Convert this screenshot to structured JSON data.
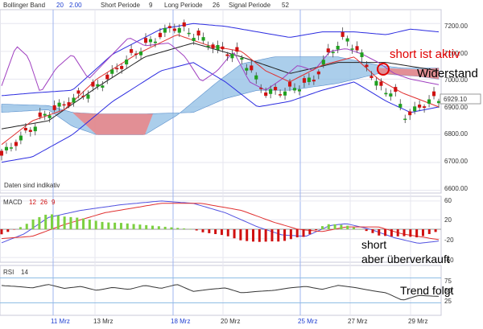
{
  "colors": {
    "price_bg": "#ffffff",
    "grid": "#e6e6ef",
    "cloud": "#8fbde4",
    "cloud_red": "#f08080",
    "bollinger": "#2b2be0",
    "signal": "#a040c0",
    "short_ma": "#e03030",
    "long_ma": "#303030",
    "candle_up": "#1fa01f",
    "candle_down": "#d01010",
    "macd_line": "#5050e0",
    "macd_signal": "#e03030",
    "hist_pos": "#7cd040",
    "hist_neg": "#d01010",
    "rsi_line": "#333333",
    "rsi_band": "#8fbde4",
    "price_box": "#ffffff",
    "annot_red": "#e00000"
  },
  "header": {
    "bb_label": "Bollinger Band",
    "bb_p1": "20",
    "bb_p2": "2.00",
    "short_label": "Short Periode",
    "short_val": "9",
    "long_label": "Long Periode",
    "long_val": "26",
    "signal_label": "Signal Periode",
    "signal_val": "52"
  },
  "notes": {
    "daten": "Daten sind indikativ"
  },
  "annotations": {
    "short_ist_aktiv": "short ist aktiv",
    "widerstand": "Widerstand",
    "short": "short",
    "aber_ueberverkauft": "aber überverkauft",
    "trend_folgt": "Trend folgt"
  },
  "price_panel": {
    "yticks": [
      "7200.00",
      "7100.00",
      "7000.00",
      "6900.00",
      "6800.00",
      "6700.00",
      "6600.00"
    ],
    "last_price": "6929.10"
  },
  "macd_panel": {
    "label": "MACD",
    "p1": "12",
    "p2": "26",
    "p3": "9",
    "yticks": [
      "60",
      "20",
      "-20",
      "-60"
    ]
  },
  "rsi_panel": {
    "label": "RSI",
    "p": "14",
    "yticks": [
      "75",
      "50",
      "25"
    ]
  },
  "x_axis": {
    "labels": [
      "11 Mrz",
      "13 Mrz",
      "18 Mrz",
      "20 Mrz",
      "25 Mrz",
      "27 Mrz",
      "29 Mrz"
    ],
    "highlight": [
      "11 Mrz",
      "18 Mrz",
      "25 Mrz"
    ]
  },
  "chart_data": [
    {
      "type": "line",
      "title": "",
      "x": [
        "11 Mrz",
        "13 Mrz",
        "18 Mrz",
        "20 Mrz",
        "25 Mrz",
        "27 Mrz",
        "29 Mrz"
      ],
      "ylim": [
        6600,
        7250
      ],
      "series": [
        {
          "name": "Bollinger Band",
          "values": [
            6770,
            6950,
            7150,
            7130,
            7050,
            7040,
            6900
          ]
        },
        {
          "values": [
            6700,
            6890,
            7170,
            7080,
            6960,
            7000,
            6920
          ]
        }
      ],
      "last_price": 6929.1
    },
    {
      "type": "bar",
      "title": "",
      "ylim": [
        -60,
        60
      ],
      "series": [
        {
          "name": "MACD",
          "values": [
            12,
            45,
            58,
            30,
            -5,
            8,
            -25
          ]
        },
        {
          "values": [
            20,
            50,
            55,
            35,
            0,
            10,
            -15
          ]
        }
      ]
    },
    {
      "type": "line",
      "title": "",
      "ylim": [
        0,
        100
      ],
      "series": [
        {
          "name": "RSI",
          "values": [
            55,
            58,
            62,
            50,
            45,
            60,
            35
          ]
        }
      ]
    }
  ]
}
